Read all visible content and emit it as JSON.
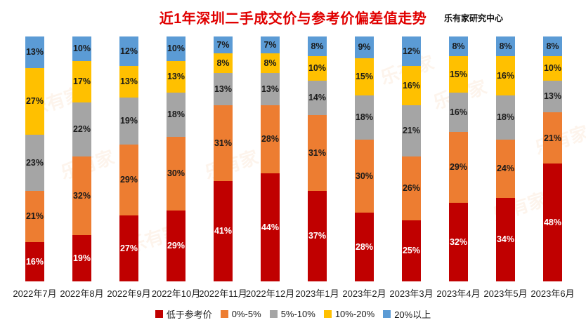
{
  "header": {
    "title": "近1年深圳二手成交价与参考价偏差值走势",
    "source": "乐有家研究中心",
    "title_color": "#e00000"
  },
  "watermark": {
    "text": "乐有家"
  },
  "chart_data": {
    "type": "bar",
    "stacked": true,
    "orientation": "vertical",
    "unit": "%",
    "value_suffix": "%",
    "title": "近1年深圳二手成交价与参考价偏差值走势",
    "categories": [
      "2022年7月",
      "2022年8月",
      "2022年9月",
      "2022年10月",
      "2022年11月",
      "2022年12月",
      "2023年1月",
      "2023年2月",
      "2023年3月",
      "2023年4月",
      "2023年5月",
      "2023年6月"
    ],
    "series": [
      {
        "name": "低于参考价",
        "color": "#C00000",
        "label_color": "#FFFFFF",
        "values": [
          16,
          19,
          27,
          29,
          41,
          44,
          37,
          28,
          25,
          32,
          34,
          48
        ]
      },
      {
        "name": "0%-5%",
        "color": "#ED7D31",
        "label_color": "#1A1A1A",
        "values": [
          21,
          32,
          29,
          30,
          31,
          28,
          31,
          30,
          26,
          29,
          24,
          21
        ]
      },
      {
        "name": "5%-10%",
        "color": "#A5A5A5",
        "label_color": "#1A1A1A",
        "values": [
          23,
          22,
          19,
          18,
          13,
          13,
          14,
          18,
          21,
          16,
          18,
          13
        ]
      },
      {
        "name": "10%-20%",
        "color": "#FFC000",
        "label_color": "#1A1A1A",
        "values": [
          27,
          17,
          13,
          13,
          8,
          8,
          10,
          15,
          16,
          15,
          16,
          10
        ]
      },
      {
        "name": "20%以上",
        "color": "#5B9BD5",
        "label_color": "#1A1A1A",
        "values": [
          13,
          10,
          12,
          10,
          7,
          7,
          8,
          9,
          12,
          8,
          8,
          8
        ]
      }
    ],
    "ylim": [
      0,
      100
    ],
    "grid": false,
    "legend_position": "bottom"
  }
}
